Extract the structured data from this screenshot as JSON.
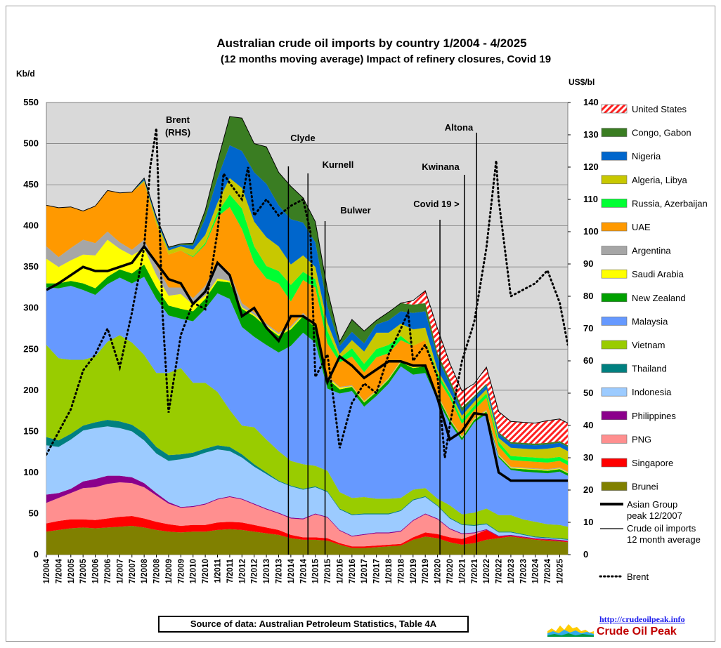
{
  "chart_data": {
    "type": "area",
    "stacked": true,
    "title": "Australian crude oil imports  by country 1/2004 - 4/2025",
    "subtitle": "(12 months moving average) Impact of refinery closures, Covid 19",
    "ylabel_left": "Kb/d",
    "ylabel_right": "US$/bl",
    "ylim_left": [
      0,
      550
    ],
    "ylim_right": [
      0,
      140
    ],
    "yticks_left": [
      "0",
      "50",
      "100",
      "150",
      "200",
      "250",
      "300",
      "350",
      "400",
      "450",
      "500",
      "550"
    ],
    "yticks_right": [
      "0",
      "10",
      "20",
      "30",
      "40",
      "50",
      "60",
      "70",
      "80",
      "90",
      "100",
      "110",
      "120",
      "130",
      "140"
    ],
    "grid": "horizontal",
    "plot_background": "#d9d9d9",
    "legend_position": "right",
    "x_range": [
      2004.0,
      2025.33
    ],
    "x_tick_labels": [
      "1/2004",
      "7/2004",
      "1/2005",
      "7/2005",
      "1/2006",
      "7/2006",
      "1/2007",
      "7/2007",
      "1/2008",
      "7/2008",
      "1/2009",
      "7/2009",
      "1/2010",
      "7/2010",
      "1/2011",
      "7/2011",
      "1/2012",
      "7/2012",
      "1/2013",
      "7/2013",
      "1/2014",
      "7/2014",
      "1/2015",
      "7/2015",
      "1/2016",
      "7/2016",
      "1/2017",
      "7/2017",
      "1/2018",
      "7/2018",
      "1/2019",
      "7/2019",
      "1/2020",
      "7/2020",
      "1/2021",
      "7/2021",
      "1/2022",
      "7/2022",
      "1/2023",
      "7/2023",
      "1/2024",
      "7/2024",
      "1/2025"
    ],
    "x": [
      2004.0,
      2004.5,
      2005.0,
      2005.5,
      2006.0,
      2006.5,
      2007.0,
      2007.5,
      2008.0,
      2008.5,
      2009.0,
      2009.5,
      2010.0,
      2010.5,
      2011.0,
      2011.5,
      2012.0,
      2012.5,
      2013.0,
      2013.5,
      2014.0,
      2014.5,
      2015.0,
      2015.5,
      2016.0,
      2016.5,
      2017.0,
      2017.5,
      2018.0,
      2018.5,
      2019.0,
      2019.5,
      2020.0,
      2020.5,
      2021.0,
      2021.5,
      2022.0,
      2022.5,
      2023.0,
      2023.5,
      2024.0,
      2024.5,
      2025.0,
      2025.33
    ],
    "series": [
      {
        "name": "Brunei",
        "color": "#808000",
        "values": [
          28,
          30,
          32,
          33,
          32,
          33,
          34,
          35,
          33,
          30,
          28,
          27,
          28,
          28,
          30,
          31,
          30,
          28,
          26,
          24,
          20,
          18,
          18,
          17,
          12,
          8,
          8,
          9,
          10,
          11,
          18,
          22,
          20,
          15,
          12,
          14,
          18,
          20,
          22,
          20,
          18,
          17,
          16,
          15
        ]
      },
      {
        "name": "Singapore",
        "color": "#ff0000",
        "values": [
          10,
          11,
          11,
          10,
          10,
          11,
          12,
          12,
          11,
          10,
          9,
          8,
          8,
          8,
          9,
          9,
          9,
          8,
          7,
          6,
          4,
          3,
          3,
          3,
          2,
          2,
          2,
          2,
          2,
          2,
          3,
          5,
          5,
          6,
          7,
          10,
          12,
          2,
          1,
          1,
          1,
          1,
          1,
          1
        ]
      },
      {
        "name": "PNG",
        "color": "#ff8f8f",
        "values": [
          25,
          28,
          32,
          38,
          40,
          42,
          42,
          40,
          38,
          32,
          25,
          22,
          22,
          25,
          28,
          30,
          28,
          25,
          22,
          20,
          20,
          22,
          28,
          25,
          15,
          12,
          14,
          15,
          14,
          15,
          20,
          22,
          18,
          10,
          6,
          2,
          0,
          0,
          0,
          0,
          0,
          0,
          0,
          0
        ]
      },
      {
        "name": "Philippines",
        "color": "#8b008b",
        "values": [
          10,
          6,
          5,
          8,
          10,
          10,
          8,
          7,
          5,
          3,
          2,
          1,
          1,
          1,
          1,
          1,
          1,
          1,
          1,
          1,
          1,
          1,
          1,
          1,
          1,
          1,
          1,
          1,
          1,
          1,
          1,
          1,
          1,
          1,
          1,
          1,
          1,
          1,
          1,
          1,
          1,
          1,
          1,
          1
        ]
      },
      {
        "name": "Indonesia",
        "color": "#9ccbff",
        "values": [
          60,
          56,
          60,
          62,
          62,
          60,
          58,
          56,
          52,
          48,
          50,
          58,
          60,
          62,
          60,
          55,
          50,
          45,
          42,
          38,
          38,
          35,
          32,
          30,
          25,
          25,
          24,
          22,
          22,
          24,
          24,
          20,
          15,
          12,
          10,
          8,
          6,
          4,
          3,
          2,
          1,
          1,
          1,
          1
        ]
      },
      {
        "name": "Thailand",
        "color": "#008080",
        "values": [
          10,
          8,
          7,
          6,
          7,
          8,
          8,
          8,
          9,
          8,
          7,
          6,
          5,
          5,
          5,
          5,
          4,
          3,
          2,
          1,
          1,
          1,
          1,
          1,
          1,
          1,
          1,
          1,
          1,
          1,
          1,
          1,
          1,
          1,
          1,
          1,
          1,
          1,
          1,
          1,
          1,
          1,
          1,
          1
        ]
      },
      {
        "name": "Vietnam",
        "color": "#99cc00",
        "values": [
          112,
          100,
          90,
          80,
          80,
          95,
          105,
          100,
          95,
          90,
          100,
          105,
          85,
          80,
          65,
          45,
          35,
          45,
          40,
          36,
          30,
          30,
          25,
          25,
          20,
          20,
          20,
          18,
          18,
          15,
          12,
          10,
          8,
          15,
          12,
          15,
          18,
          20,
          20,
          18,
          18,
          16,
          16,
          15
        ]
      },
      {
        "name": "Malaysia",
        "color": "#6699ff",
        "values": [
          70,
          85,
          90,
          85,
          75,
          70,
          70,
          72,
          95,
          90,
          70,
          60,
          75,
          90,
          120,
          135,
          120,
          110,
          115,
          120,
          140,
          160,
          150,
          100,
          120,
          130,
          110,
          125,
          140,
          160,
          140,
          140,
          120,
          100,
          90,
          110,
          115,
          70,
          55,
          58,
          60,
          62,
          65,
          62
        ]
      },
      {
        "name": "New Zealand",
        "color": "#00a000",
        "values": [
          5,
          6,
          6,
          8,
          8,
          9,
          10,
          12,
          15,
          14,
          12,
          12,
          12,
          12,
          15,
          20,
          22,
          25,
          22,
          20,
          20,
          20,
          18,
          12,
          5,
          5,
          5,
          5,
          5,
          5,
          8,
          8,
          5,
          4,
          3,
          3,
          3,
          2,
          2,
          3,
          3,
          3,
          3,
          3
        ]
      },
      {
        "name": "Saudi Arabia",
        "color": "#ffff00",
        "values": [
          30,
          20,
          25,
          35,
          40,
          45,
          25,
          22,
          20,
          15,
          12,
          18,
          8,
          4,
          3,
          2,
          2,
          2,
          2,
          2,
          2,
          2,
          2,
          2,
          2,
          1,
          1,
          1,
          1,
          1,
          1,
          1,
          1,
          1,
          1,
          1,
          1,
          1,
          1,
          1,
          1,
          1,
          1,
          1
        ]
      },
      {
        "name": "Argentina",
        "color": "#a6a6a6",
        "values": [
          15,
          12,
          15,
          18,
          15,
          10,
          8,
          7,
          10,
          12,
          10,
          8,
          8,
          12,
          20,
          10,
          5,
          3,
          2,
          2,
          2,
          2,
          2,
          1,
          1,
          1,
          1,
          1,
          1,
          1,
          1,
          1,
          1,
          1,
          1,
          1,
          1,
          1,
          1,
          1,
          1,
          1,
          1,
          1
        ]
      },
      {
        "name": "UAE",
        "color": "#ff9900",
        "values": [
          50,
          60,
          50,
          35,
          45,
          50,
          60,
          70,
          70,
          50,
          40,
          45,
          50,
          50,
          55,
          80,
          90,
          60,
          55,
          60,
          30,
          40,
          45,
          40,
          30,
          35,
          35,
          40,
          30,
          25,
          25,
          30,
          20,
          25,
          15,
          10,
          15,
          10,
          8,
          8,
          8,
          8,
          8,
          8
        ]
      },
      {
        "name": "Russia, Azerbaijan",
        "color": "#00ff33",
        "values": [
          0,
          0,
          0,
          0,
          0,
          0,
          0,
          0,
          0,
          0,
          0,
          0,
          1,
          2,
          5,
          15,
          25,
          20,
          15,
          15,
          20,
          10,
          10,
          15,
          5,
          10,
          10,
          10,
          10,
          5,
          0,
          0,
          5,
          5,
          5,
          5,
          5,
          5,
          5,
          5,
          5,
          5,
          5,
          5
        ]
      },
      {
        "name": "Algeria, Libya",
        "color": "#c8c800",
        "values": [
          0,
          0,
          0,
          0,
          0,
          0,
          0,
          0,
          2,
          5,
          5,
          5,
          8,
          10,
          12,
          20,
          25,
          30,
          35,
          30,
          25,
          20,
          15,
          10,
          5,
          10,
          15,
          20,
          15,
          15,
          20,
          15,
          5,
          2,
          5,
          5,
          5,
          5,
          10,
          10,
          10,
          12,
          12,
          12
        ]
      },
      {
        "name": "Nigeria",
        "color": "#0066cc",
        "values": [
          0,
          0,
          0,
          0,
          0,
          0,
          0,
          0,
          2,
          3,
          3,
          2,
          5,
          20,
          30,
          40,
          45,
          60,
          65,
          50,
          55,
          40,
          30,
          20,
          10,
          10,
          10,
          10,
          15,
          15,
          20,
          20,
          15,
          10,
          5,
          5,
          5,
          5,
          5,
          5,
          5,
          5,
          5,
          5
        ]
      },
      {
        "name": "Congo, Gabon",
        "color": "#3a7d22",
        "values": [
          0,
          0,
          0,
          0,
          0,
          0,
          0,
          0,
          1,
          1,
          1,
          1,
          3,
          10,
          20,
          35,
          40,
          35,
          45,
          40,
          40,
          30,
          25,
          20,
          5,
          15,
          15,
          5,
          10,
          10,
          10,
          10,
          5,
          5,
          5,
          2,
          2,
          2,
          2,
          2,
          2,
          2,
          2,
          2
        ]
      },
      {
        "name": "United States",
        "color": "#ff3333",
        "pattern": "hatch",
        "values": [
          0,
          0,
          0,
          0,
          0,
          0,
          0,
          0,
          0,
          0,
          0,
          0,
          0,
          0,
          0,
          0,
          0,
          0,
          0,
          0,
          0,
          0,
          0,
          0,
          0,
          0,
          0,
          0,
          0,
          0,
          5,
          15,
          30,
          20,
          20,
          15,
          20,
          25,
          25,
          25,
          25,
          27,
          27,
          27
        ]
      }
    ],
    "asian_group": {
      "name": "Asian Group\npeak 12/2007",
      "values": [
        322,
        330,
        340,
        350,
        345,
        345,
        350,
        355,
        375,
        355,
        335,
        330,
        305,
        320,
        355,
        340,
        290,
        300,
        276,
        260,
        290,
        290,
        280,
        210,
        241,
        230,
        215,
        225,
        235,
        235,
        230,
        230,
        190,
        140,
        150,
        172,
        170,
        100,
        90,
        90,
        90,
        90,
        90,
        90
      ]
    },
    "brent_series": {
      "name": "Brent",
      "axis": "right",
      "style": "dotted",
      "x": [
        2004.0,
        2004.5,
        2005.0,
        2005.5,
        2006.0,
        2006.5,
        2007.0,
        2007.5,
        2008.0,
        2008.25,
        2008.5,
        2008.75,
        2009.0,
        2009.5,
        2010.0,
        2010.5,
        2011.0,
        2011.25,
        2011.5,
        2012.0,
        2012.25,
        2012.5,
        2013.0,
        2013.5,
        2014.0,
        2014.5,
        2014.8,
        2015.0,
        2015.5,
        2015.8,
        2016.0,
        2016.5,
        2017.0,
        2017.5,
        2018.0,
        2018.5,
        2018.8,
        2019.0,
        2019.5,
        2020.0,
        2020.3,
        2020.5,
        2021.0,
        2021.5,
        2022.0,
        2022.4,
        2022.5,
        2023.0,
        2023.5,
        2024.0,
        2024.5,
        2025.0,
        2025.33
      ],
      "values": [
        31,
        38,
        45,
        57,
        62,
        70,
        58,
        75,
        95,
        120,
        132,
        75,
        44,
        68,
        78,
        76,
        100,
        118,
        115,
        110,
        120,
        105,
        110,
        105,
        108,
        110,
        100,
        55,
        62,
        45,
        33,
        47,
        53,
        50,
        62,
        70,
        75,
        60,
        65,
        55,
        30,
        40,
        60,
        72,
        95,
        122,
        110,
        80,
        82,
        84,
        88,
        78,
        65
      ]
    },
    "events": [
      {
        "label": "Clyde",
        "x": 2013.9
      },
      {
        "label": "Kurnell",
        "x": 2014.7
      },
      {
        "label": "Bulwer",
        "x": 2015.4
      },
      {
        "label": "Covid 19 >",
        "x": 2020.1
      },
      {
        "label": "Kwinana",
        "x": 2021.1
      },
      {
        "label": "Altona",
        "x": 2021.6
      }
    ],
    "annotations": [
      {
        "label": "Brent",
        "label2": "(RHS)"
      }
    ],
    "legend": [
      "United States",
      "Congo, Gabon",
      "Nigeria",
      "Algeria, Libya",
      "Russia, Azerbaijan",
      "UAE",
      "Argentina",
      "Saudi Arabia",
      "New Zealand",
      "Malaysia",
      "Vietnam",
      "Thailand",
      "Indonesia",
      "Philippines",
      "PNG",
      "Singapore",
      "Brunei",
      "Asian Group peak 12/2007",
      "Crude oil imports 12 month average",
      "Brent"
    ],
    "legend_extra": {
      "asian_group_line1": "Asian Group",
      "asian_group_line2": "peak 12/2007",
      "total_line1": "Crude oil imports",
      "total_line2": "12 month average",
      "brent": "Brent"
    }
  },
  "source_text": "Source of data: Australian Petroleum Statistics, Table 4A",
  "site_url": "http://crudeoilpeak.info",
  "brand_name": "Crude Oil Peak"
}
